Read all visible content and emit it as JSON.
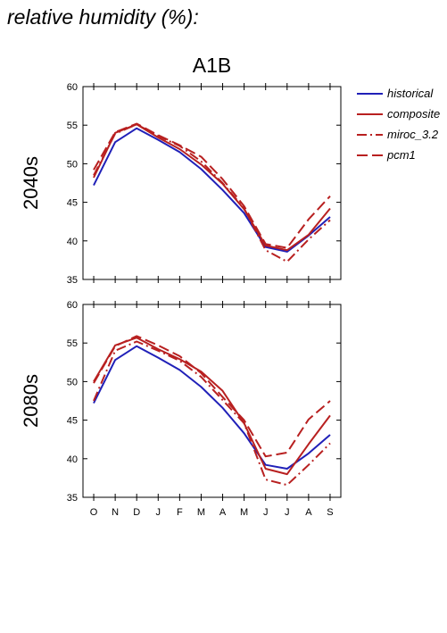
{
  "heading": "relative humidity (%):",
  "chart_data": {
    "type": "line",
    "title": "A1B",
    "categories": [
      "O",
      "N",
      "D",
      "J",
      "F",
      "M",
      "A",
      "M",
      "J",
      "J",
      "A",
      "S"
    ],
    "ylim": [
      35,
      60
    ],
    "yticks": [
      35,
      40,
      45,
      50,
      55,
      60
    ],
    "legend": {
      "placement": "right"
    },
    "series_styles": [
      {
        "name": "historical",
        "color": "#2020b8",
        "dash": "solid"
      },
      {
        "name": "composite",
        "color": "#b82020",
        "dash": "solid"
      },
      {
        "name": "miroc_3.2",
        "color": "#b82020",
        "dash": "dashdot"
      },
      {
        "name": "pcm1",
        "color": "#b82020",
        "dash": "dash"
      }
    ],
    "panels": [
      {
        "label": "2040s",
        "series": [
          {
            "name": "historical",
            "values": [
              47.2,
              52.8,
              54.6,
              53.1,
              51.5,
              49.3,
              46.6,
              43.6,
              39.2,
              38.6,
              40.7,
              43.1
            ]
          },
          {
            "name": "composite",
            "values": [
              48.2,
              54.0,
              55.1,
              53.4,
              51.9,
              49.9,
              47.4,
              44.1,
              39.4,
              38.8,
              40.8,
              44.2
            ]
          },
          {
            "name": "miroc_3.2",
            "values": [
              48.5,
              53.9,
              55.1,
              53.6,
              52.3,
              50.3,
              47.5,
              44.2,
              38.8,
              37.3,
              40.2,
              42.7
            ]
          },
          {
            "name": "pcm1",
            "values": [
              49.2,
              54.1,
              55.2,
              53.7,
              52.4,
              50.9,
              48.0,
              44.5,
              39.6,
              39.1,
              42.8,
              45.8
            ]
          }
        ]
      },
      {
        "label": "2080s",
        "series": [
          {
            "name": "historical",
            "values": [
              47.2,
              52.8,
              54.6,
              53.1,
              51.5,
              49.3,
              46.6,
              43.3,
              39.2,
              38.7,
              40.7,
              43.1
            ]
          },
          {
            "name": "composite",
            "values": [
              50.0,
              54.7,
              55.7,
              54.2,
              52.9,
              51.3,
              48.8,
              44.6,
              38.7,
              38.0,
              41.9,
              45.6
            ]
          },
          {
            "name": "miroc_3.2",
            "values": [
              47.5,
              54.0,
              55.2,
              54.0,
              52.7,
              50.6,
              47.6,
              44.6,
              37.3,
              36.6,
              39.2,
              42.0
            ]
          },
          {
            "name": "pcm1",
            "values": [
              49.8,
              54.6,
              55.9,
              54.7,
              53.3,
              51.1,
              48.0,
              45.0,
              40.3,
              40.8,
              45.1,
              47.5
            ]
          }
        ]
      }
    ]
  }
}
